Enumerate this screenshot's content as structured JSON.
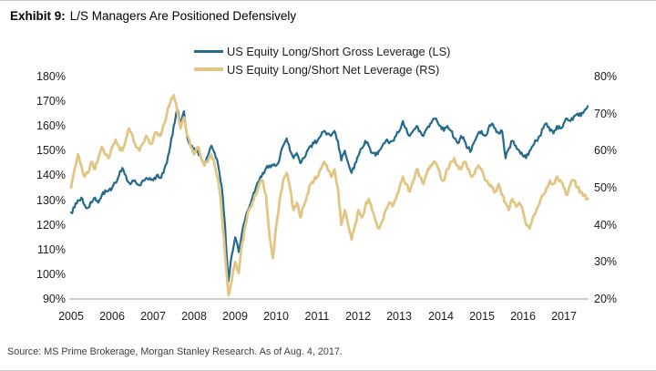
{
  "header": {
    "exhibit_label": "Exhibit 9:",
    "title": "L/S Managers Are Positioned Defensively"
  },
  "footer": {
    "source": "Source: MS Prime Brokerage, Morgan Stanley Research. As of Aug. 4, 2017."
  },
  "colors": {
    "gross_line": "#246a8e",
    "net_line": "#e2c685",
    "axis_line": "#9a9a9a"
  },
  "chart_data": {
    "type": "line",
    "title": "Exhibit 9: L/S Managers Are Positioned Defensively",
    "grid": false,
    "legend_position": "top-center",
    "x_tick_labels": [
      "2005",
      "2006",
      "2007",
      "2008",
      "2009",
      "2010",
      "2011",
      "2012",
      "2013",
      "2014",
      "2015",
      "2016",
      "2017"
    ],
    "x_range_note": "monthly values, Jan 2005 through Aug 2017",
    "left_axis": {
      "min": 90,
      "max": 180,
      "ticks": [
        "180%",
        "170%",
        "160%",
        "150%",
        "140%",
        "130%",
        "120%",
        "110%",
        "100%",
        "90%"
      ]
    },
    "right_axis": {
      "min": 20,
      "max": 80,
      "ticks": [
        "80%",
        "70%",
        "60%",
        "50%",
        "40%",
        "30%",
        "20%"
      ]
    },
    "series": [
      {
        "name": "US Equity Long/Short Gross Leverage (LS)",
        "axis": "left",
        "color": "#246a8e",
        "values": [
          125,
          127,
          130,
          131,
          128,
          127,
          129,
          131,
          129,
          132,
          134,
          134,
          135,
          137,
          140,
          143,
          140,
          137,
          138,
          137,
          136,
          138,
          139,
          139,
          138,
          140,
          139,
          141,
          145,
          152,
          160,
          167,
          161,
          166,
          155,
          152,
          151,
          150,
          147,
          145,
          148,
          152,
          149,
          144,
          136,
          120,
          97,
          108,
          115,
          109,
          117,
          123,
          127,
          131,
          135,
          138,
          141,
          143,
          144,
          144,
          144,
          147,
          152,
          155,
          150,
          147,
          149,
          145,
          147,
          150,
          152,
          153,
          154,
          156,
          158,
          157,
          156,
          158,
          154,
          146,
          150,
          145,
          141,
          145,
          148,
          151,
          154,
          152,
          149,
          148,
          150,
          152,
          154,
          153,
          154,
          156,
          158,
          162,
          159,
          156,
          158,
          160,
          158,
          156,
          159,
          161,
          163,
          162,
          160,
          158,
          160,
          158,
          155,
          153,
          156,
          154,
          151,
          150,
          154,
          157,
          158,
          156,
          159,
          161,
          159,
          157,
          158,
          147,
          151,
          154,
          152,
          150,
          148,
          147,
          150,
          152,
          154,
          156,
          159,
          161,
          158,
          157,
          160,
          159,
          161,
          163,
          162,
          164,
          165,
          164,
          166,
          168
        ]
      },
      {
        "name": "US Equity Long/Short Net Leverage (RS)",
        "axis": "right",
        "color": "#e2c685",
        "values": [
          50,
          55,
          59,
          56,
          53,
          54,
          57,
          55,
          58,
          61,
          59,
          58,
          61,
          63,
          61,
          60,
          63,
          66,
          64,
          61,
          60,
          62,
          64,
          62,
          63,
          65,
          64,
          67,
          70,
          73,
          75,
          71,
          66,
          69,
          64,
          61,
          59,
          61,
          58,
          56,
          57,
          59,
          56,
          52,
          44,
          32,
          21,
          25,
          30,
          27,
          35,
          40,
          44,
          46,
          48,
          51,
          52,
          48,
          37,
          31,
          40,
          47,
          52,
          54,
          50,
          44,
          46,
          42,
          45,
          48,
          51,
          52,
          53,
          55,
          57,
          55,
          53,
          55,
          50,
          40,
          44,
          40,
          36,
          40,
          44,
          42,
          45,
          47,
          44,
          41,
          39,
          41,
          44,
          46,
          45,
          47,
          50,
          53,
          51,
          49,
          52,
          55,
          53,
          51,
          54,
          56,
          57,
          56,
          53,
          52,
          55,
          57,
          58,
          56,
          55,
          57,
          55,
          53,
          54,
          56,
          55,
          52,
          51,
          50,
          49,
          51,
          48,
          46,
          44,
          47,
          45,
          46,
          44,
          40,
          39,
          42,
          44,
          46,
          48,
          50,
          52,
          51,
          53,
          52,
          50,
          48,
          51,
          52,
          50,
          49,
          48,
          47
        ]
      }
    ]
  }
}
